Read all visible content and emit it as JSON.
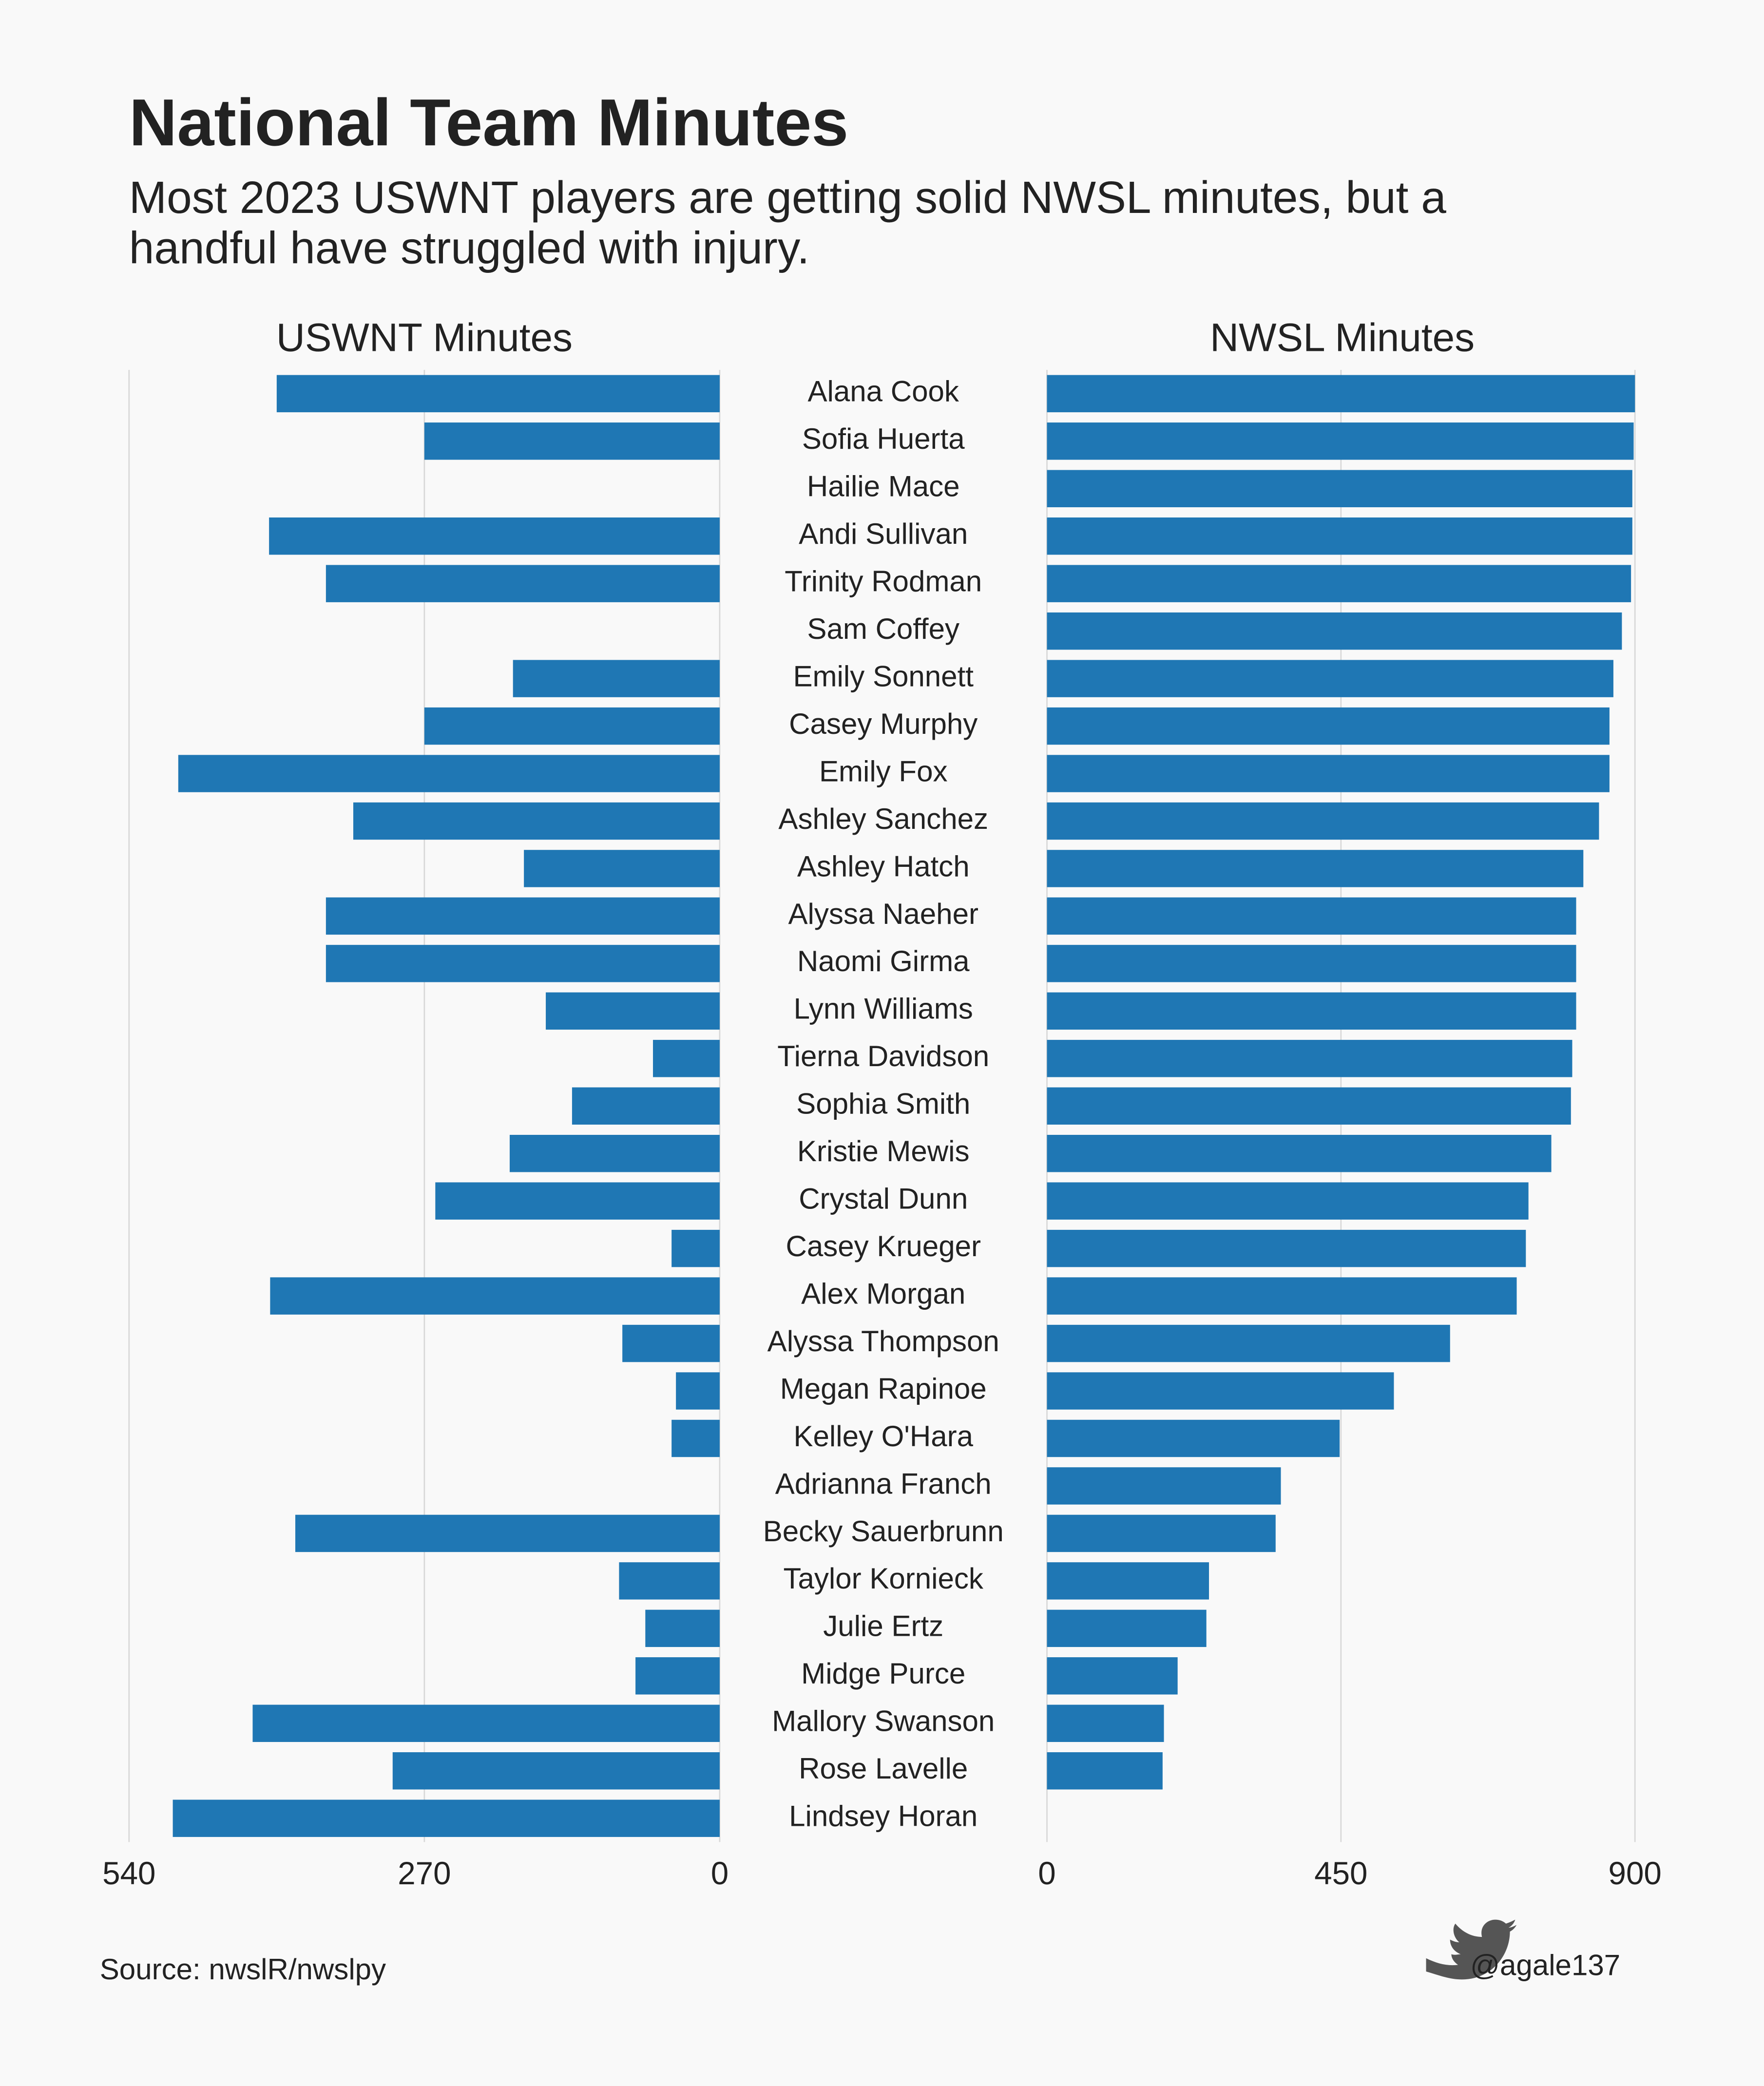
{
  "chart_data": {
    "type": "bar",
    "title": "National Team Minutes",
    "subtitle": [
      "Most 2023 USWNT players are getting solid NWSL minutes, but a",
      "handful have struggled with injury."
    ],
    "categories": [
      "Alana Cook",
      "Sofia Huerta",
      "Hailie Mace",
      "Andi Sullivan",
      "Trinity Rodman",
      "Sam Coffey",
      "Emily Sonnett",
      "Casey Murphy",
      "Emily Fox",
      "Ashley Sanchez",
      "Ashley Hatch",
      "Alyssa Naeher",
      "Naomi Girma",
      "Lynn Williams",
      "Tierna Davidson",
      "Sophia Smith",
      "Kristie Mewis",
      "Crystal Dunn",
      "Casey Krueger",
      "Alex Morgan",
      "Alyssa Thompson",
      "Megan Rapinoe",
      "Kelley O'Hara",
      "Adrianna Franch",
      "Becky Sauerbrunn",
      "Taylor Kornieck",
      "Julie Ertz",
      "Midge Purce",
      "Mallory Swanson",
      "Rose Lavelle",
      "Lindsey Horan"
    ],
    "panels": [
      {
        "name": "USWNT Minutes",
        "color": "#1f77b4",
        "xlim": [
          540,
          0
        ],
        "xticks": [
          540,
          270,
          0
        ],
        "values": [
          405,
          270,
          0,
          412,
          360,
          0,
          189,
          270,
          495,
          335,
          179,
          360,
          360,
          159,
          61,
          135,
          192,
          260,
          44,
          411,
          89,
          40,
          44,
          0,
          388,
          92,
          68,
          77,
          427,
          299,
          500
        ]
      },
      {
        "name": "NWSL Minutes",
        "color": "#1f77b4",
        "xlim": [
          0,
          900
        ],
        "xticks": [
          0,
          450,
          900
        ],
        "values": [
          900,
          898,
          896,
          896,
          894,
          880,
          867,
          861,
          861,
          845,
          821,
          810,
          810,
          810,
          804,
          802,
          772,
          737,
          733,
          719,
          617,
          531,
          448,
          358,
          350,
          248,
          244,
          200,
          179,
          177,
          0
        ]
      }
    ],
    "grid": true,
    "source": "Source: nwslR/nwslpy",
    "credit": "@agale137"
  }
}
